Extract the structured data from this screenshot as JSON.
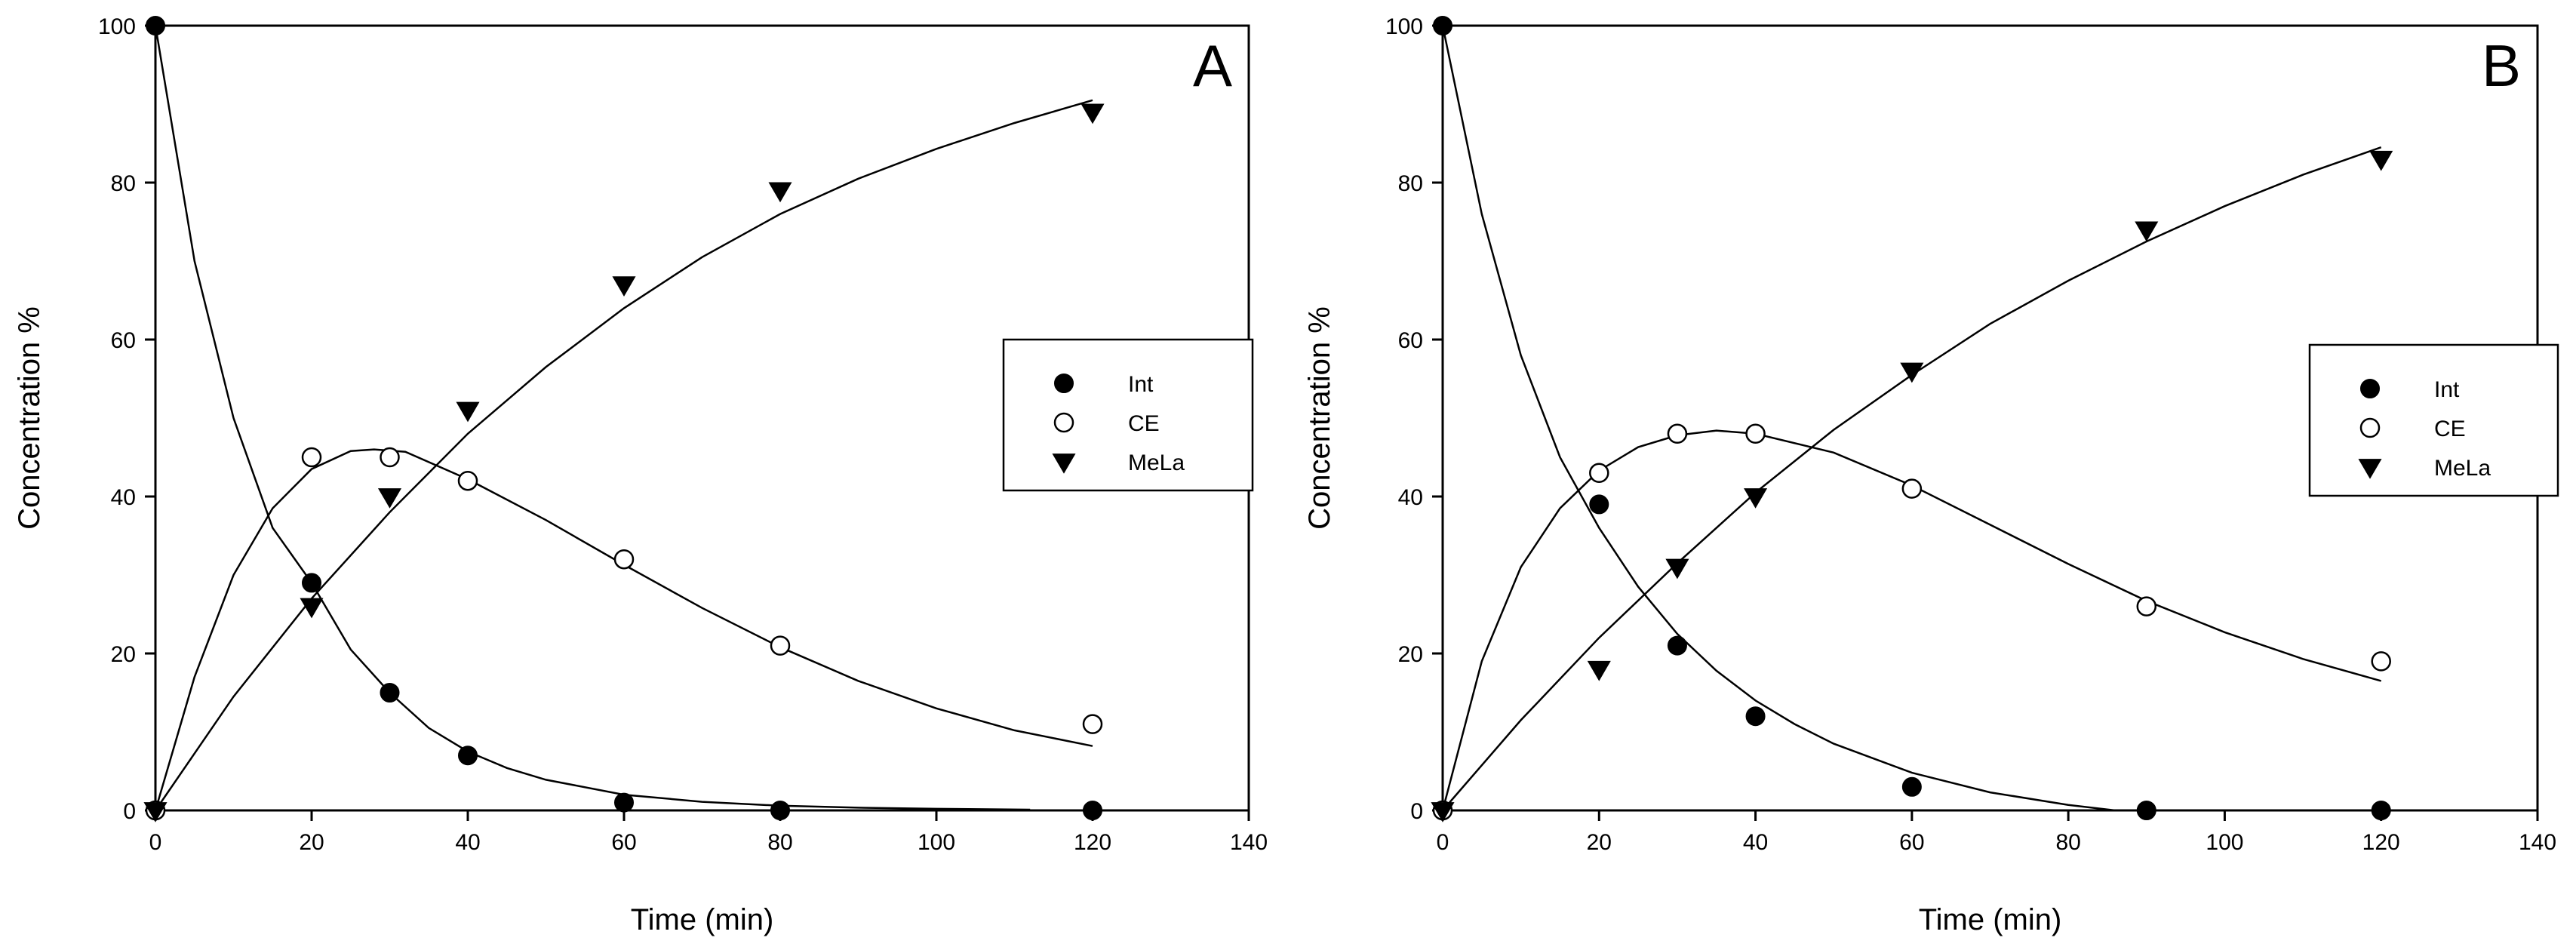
{
  "chart_data": [
    {
      "type": "scatter",
      "panel_label": "A",
      "xlabel": "Time (min)",
      "ylabel": "Concentration %",
      "xlim": [
        0,
        140
      ],
      "ylim": [
        0,
        100
      ],
      "x_ticks": [
        0,
        20,
        40,
        60,
        80,
        100,
        120,
        140
      ],
      "y_ticks": [
        0,
        20,
        40,
        60,
        80,
        100
      ],
      "legend_position": "center-right",
      "series": [
        {
          "name": "Int",
          "marker": "filled-circle",
          "x": [
            0,
            20,
            30,
            40,
            60,
            80,
            120
          ],
          "y": [
            100,
            29,
            15,
            7,
            1,
            0,
            0
          ],
          "fit_x": [
            0,
            5,
            10,
            15,
            20,
            25,
            30,
            35,
            40,
            45,
            50,
            60,
            70,
            80,
            90,
            100,
            112
          ],
          "fit_y": [
            100,
            70,
            50,
            36,
            29,
            20.5,
            15,
            10.5,
            7.5,
            5.4,
            3.9,
            2,
            1.1,
            0.6,
            0.35,
            0.2,
            0.1
          ]
        },
        {
          "name": "CE",
          "marker": "open-circle",
          "x": [
            0,
            20,
            30,
            40,
            60,
            80,
            120
          ],
          "y": [
            0,
            45,
            45,
            42,
            32,
            21,
            11
          ],
          "fit_x": [
            0,
            5,
            10,
            15,
            20,
            25,
            28,
            32,
            40,
            50,
            60,
            70,
            80,
            90,
            100,
            110,
            120
          ],
          "fit_y": [
            0,
            17,
            30,
            38.5,
            43.5,
            45.8,
            46,
            45.7,
            42.2,
            37,
            31.3,
            25.8,
            20.8,
            16.5,
            13,
            10.2,
            8.2
          ]
        },
        {
          "name": "MeLa",
          "marker": "filled-triangle-down",
          "x": [
            0,
            20,
            30,
            40,
            60,
            80,
            120
          ],
          "y": [
            0,
            26,
            40,
            51,
            67,
            79,
            89
          ],
          "fit_x": [
            0,
            10,
            20,
            30,
            40,
            50,
            60,
            70,
            80,
            90,
            100,
            110,
            120
          ],
          "fit_y": [
            0,
            14.5,
            27,
            38,
            48,
            56.5,
            64,
            70.5,
            76,
            80.5,
            84.3,
            87.6,
            90.5
          ]
        }
      ]
    },
    {
      "type": "scatter",
      "panel_label": "B",
      "xlabel": "Time (min)",
      "ylabel": "Concentration %",
      "xlim": [
        0,
        140
      ],
      "ylim": [
        0,
        100
      ],
      "x_ticks": [
        0,
        20,
        40,
        60,
        80,
        100,
        120,
        140
      ],
      "y_ticks": [
        0,
        20,
        40,
        60,
        80,
        100
      ],
      "legend_position": "center-right",
      "series": [
        {
          "name": "Int",
          "marker": "filled-circle",
          "x": [
            0,
            20,
            30,
            40,
            60,
            90,
            120
          ],
          "y": [
            100,
            39,
            21,
            12,
            3,
            0,
            0
          ],
          "fit_x": [
            0,
            5,
            10,
            15,
            20,
            25,
            30,
            35,
            40,
            45,
            50,
            60,
            70,
            80,
            86
          ],
          "fit_y": [
            100,
            76,
            58,
            45,
            36,
            28.5,
            22.5,
            17.8,
            14,
            11,
            8.5,
            4.8,
            2.3,
            0.7,
            0
          ]
        },
        {
          "name": "CE",
          "marker": "open-circle",
          "x": [
            0,
            20,
            30,
            40,
            60,
            90,
            120
          ],
          "y": [
            0,
            43,
            48,
            48,
            41,
            26,
            19
          ],
          "fit_x": [
            0,
            5,
            10,
            15,
            20,
            25,
            30,
            35,
            40,
            50,
            60,
            70,
            80,
            90,
            100,
            110,
            120
          ],
          "fit_y": [
            0,
            19,
            31,
            38.5,
            43.3,
            46.3,
            47.8,
            48.4,
            48,
            45.6,
            41.4,
            36.4,
            31.4,
            26.7,
            22.7,
            19.3,
            16.5
          ]
        },
        {
          "name": "MeLa",
          "marker": "filled-triangle-down",
          "x": [
            0,
            20,
            30,
            40,
            60,
            90,
            120
          ],
          "y": [
            0,
            18,
            31,
            40,
            56,
            74,
            83
          ],
          "fit_x": [
            0,
            10,
            20,
            30,
            40,
            50,
            60,
            70,
            80,
            90,
            100,
            110,
            120
          ],
          "fit_y": [
            0,
            11.5,
            22,
            31.5,
            40.5,
            48.5,
            55.5,
            62,
            67.5,
            72.5,
            77,
            81,
            84.5
          ]
        }
      ]
    }
  ]
}
